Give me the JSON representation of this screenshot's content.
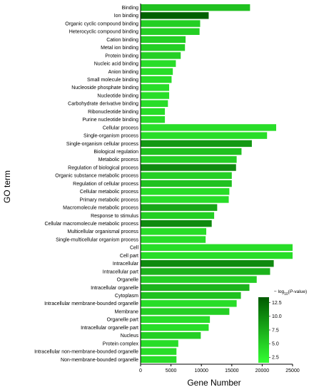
{
  "chart_data": {
    "type": "bar",
    "orientation": "horizontal",
    "xlabel": "Gene Number",
    "ylabel": "GO term",
    "xlim": [
      0,
      25000
    ],
    "xticks": [
      0,
      5000,
      10000,
      15000,
      20000,
      25000
    ],
    "xtick_labels": [
      "0",
      "5000",
      "10000",
      "15000",
      "20000",
      "25000"
    ],
    "grid": false,
    "legend": {
      "title_prefix": "− log",
      "title_sub": "10",
      "title_paren_open": "(",
      "title_italic": "P",
      "title_suffix": "-value)",
      "position": "bottom-right",
      "range": [
        1.5,
        13.5
      ],
      "ticks": [
        2.5,
        5.0,
        7.5,
        10.0,
        12.5
      ],
      "tick_labels": [
        "2.5",
        "5.0",
        "7.5",
        "10.0",
        "12.5"
      ],
      "color_low": "#33ff33",
      "color_high": "#005a00"
    },
    "categories": [
      "Binding",
      "Ion binding",
      "Organic cyclic compound binding",
      "Heterocyclic compound binding",
      "Cation binding",
      "Metal ion binding",
      "Protein binding",
      "Nucleic acid binding",
      "Anion binding",
      "Small molecule binding",
      "Nucleoside phosphate binding",
      "Nucleotide binding",
      "Carbohydrate derivative binding",
      "Ribonucleotide binding",
      "Purine nucleotide binding",
      "Cellular process",
      "Single-organism process",
      "Single-organism cellular process",
      "Biological regulation",
      "Metabolic process",
      "Regulation of biological process",
      "Organic substance metabolic process",
      "Regulation of cellular process",
      "Cellular metabolic process",
      "Primary metabolic process",
      "Macromolecule metabolic process",
      "Response to stimulus",
      "Cellular macromolecule metabolic process",
      "Multicellular organismal process",
      "Single-multicellular organism process",
      "Cell",
      "Cell part",
      "Intracellular",
      "Intracellular part",
      "Organelle",
      "Intracellular organelle",
      "Cytoplasm",
      "Intracellular membrane-bounded organelle",
      "Membrane",
      "Organelle part",
      "Intracellular organelle part",
      "Nucleus",
      "Protein complex",
      "Intracellular non-membrane-bounded organelle",
      "Non-membrane-bounded organelle"
    ],
    "values": [
      18000,
      11200,
      9800,
      9700,
      7400,
      7300,
      6600,
      5800,
      5300,
      5100,
      4700,
      4700,
      4500,
      4000,
      4000,
      22300,
      20800,
      18300,
      16600,
      15800,
      15700,
      15000,
      15000,
      14600,
      14500,
      12600,
      12100,
      11700,
      10800,
      10700,
      25000,
      25000,
      21900,
      21300,
      19100,
      17900,
      16500,
      15800,
      14600,
      11400,
      11200,
      9900,
      6200,
      5900,
      5900
    ],
    "color_values": [
      6,
      13,
      5,
      5,
      5,
      5,
      5,
      4,
      4,
      4,
      4,
      4,
      4,
      4,
      4,
      4,
      4,
      9,
      6,
      5,
      10,
      5,
      6,
      4,
      4,
      8,
      5,
      10,
      4,
      4,
      4,
      4,
      10,
      7,
      5,
      7,
      6,
      4,
      5,
      4,
      4,
      5,
      4,
      4,
      4
    ]
  }
}
